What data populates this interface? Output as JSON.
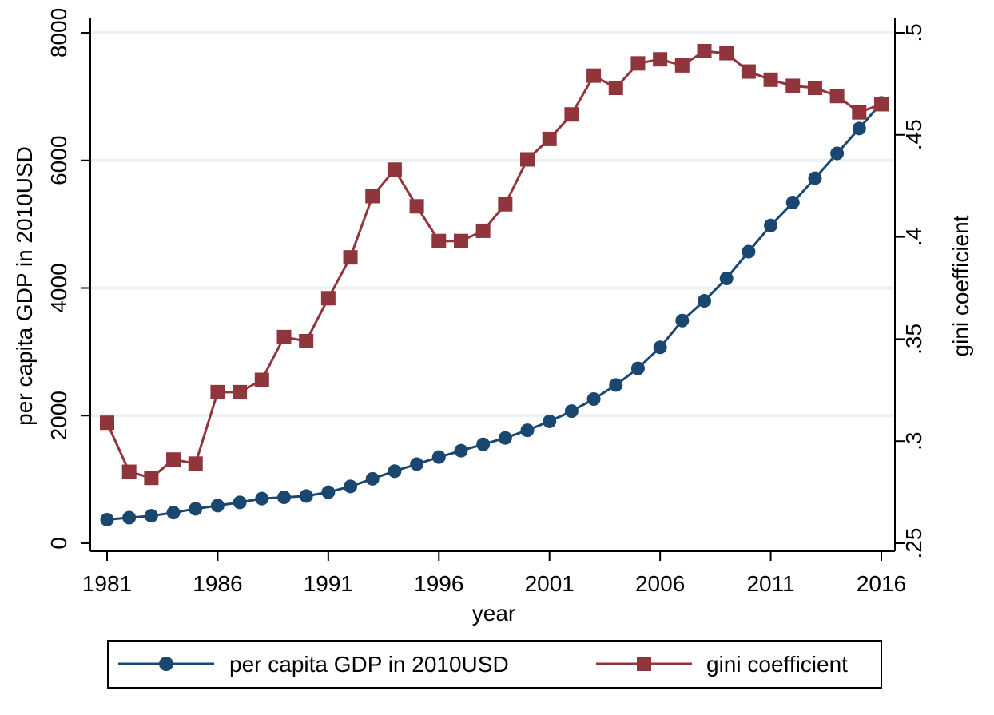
{
  "chart_data": {
    "type": "line",
    "x": [
      1981,
      1982,
      1983,
      1984,
      1985,
      1986,
      1987,
      1988,
      1989,
      1990,
      1991,
      1992,
      1993,
      1994,
      1995,
      1996,
      1997,
      1998,
      1999,
      2000,
      2001,
      2002,
      2003,
      2004,
      2005,
      2006,
      2007,
      2008,
      2009,
      2010,
      2011,
      2012,
      2013,
      2014,
      2015,
      2016
    ],
    "x_ticks": [
      "1981",
      "1986",
      "1991",
      "1996",
      "2001",
      "2006",
      "2011",
      "2016"
    ],
    "xlabel": "year",
    "left_axis": {
      "label": "per capita GDP in 2010USD",
      "ticks": [
        "0",
        "2000",
        "4000",
        "6000",
        "8000"
      ],
      "range": [
        0,
        8000
      ]
    },
    "right_axis": {
      "label": "gini coefficient",
      "ticks": [
        ".25",
        ".3",
        ".35",
        ".4",
        ".45",
        ".5"
      ],
      "range": [
        0.25,
        0.5
      ]
    },
    "grid": true,
    "legend_position": "bottom",
    "series": [
      {
        "name": "per capita GDP in 2010USD",
        "axis": "left",
        "color": "#1a476f",
        "marker": "circle",
        "values": [
          370,
          400,
          430,
          480,
          540,
          590,
          640,
          700,
          720,
          740,
          800,
          890,
          1010,
          1130,
          1240,
          1350,
          1450,
          1550,
          1650,
          1770,
          1910,
          2070,
          2260,
          2480,
          2740,
          3070,
          3490,
          3800,
          4150,
          4570,
          4980,
          5340,
          5720,
          6110,
          6500,
          6900
        ]
      },
      {
        "name": "gini coefficient",
        "axis": "right",
        "color": "#90353b",
        "marker": "square",
        "values": [
          0.309,
          0.285,
          0.282,
          0.291,
          0.289,
          0.324,
          0.324,
          0.33,
          0.351,
          0.349,
          0.37,
          0.39,
          0.42,
          0.433,
          0.415,
          0.398,
          0.398,
          0.403,
          0.416,
          0.438,
          0.448,
          0.46,
          0.479,
          0.473,
          0.485,
          0.487,
          0.484,
          0.491,
          0.49,
          0.481,
          0.477,
          0.474,
          0.473,
          0.469,
          0.461,
          0.465
        ]
      }
    ]
  }
}
